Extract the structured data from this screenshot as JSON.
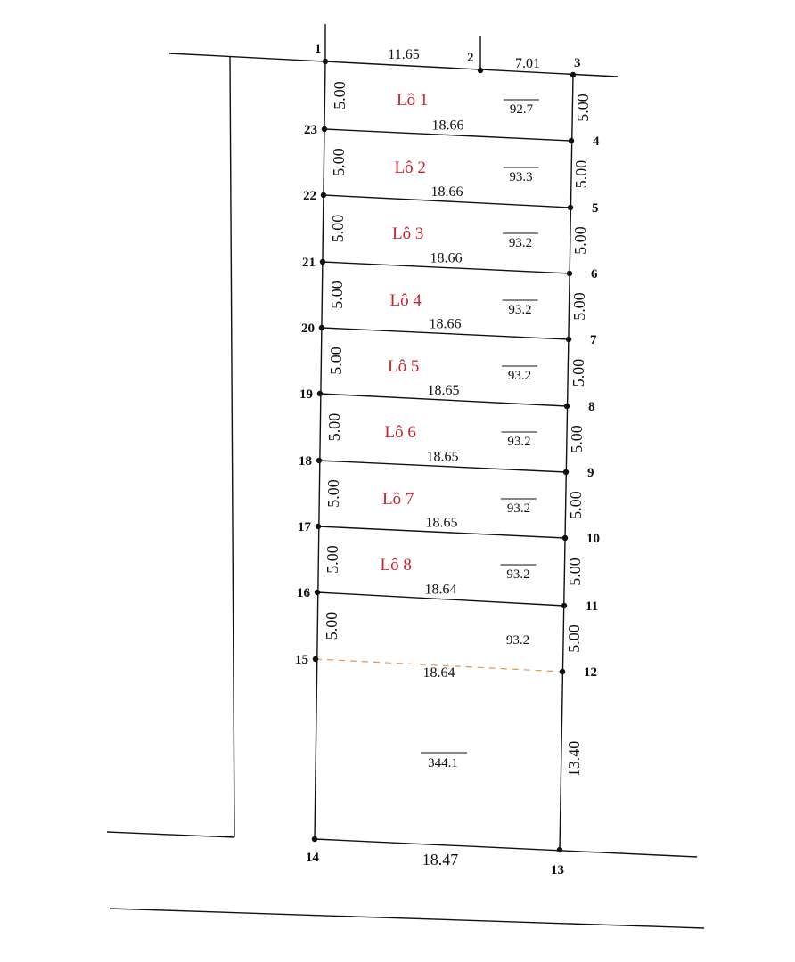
{
  "colors": {
    "lot_label": "#d0202a",
    "dashed_line": "#e8954a",
    "line": "#111111"
  },
  "top_edges": [
    "11.65",
    "7.01"
  ],
  "lots": [
    {
      "name": "Lô 1",
      "area": "92.7",
      "left": "5.00",
      "right": "5.00",
      "bottom_width": "18.66"
    },
    {
      "name": "Lô 2",
      "area": "93.3",
      "left": "5.00",
      "right": "5.00",
      "bottom_width": "18.66"
    },
    {
      "name": "Lô 3",
      "area": "93.2",
      "left": "5.00",
      "right": "5.00",
      "bottom_width": "18.66"
    },
    {
      "name": "Lô 4",
      "area": "93.2",
      "left": "5.00",
      "right": "5.00",
      "bottom_width": "18.66"
    },
    {
      "name": "Lô 5",
      "area": "93.2",
      "left": "5.00",
      "right": "5.00",
      "bottom_width": "18.65"
    },
    {
      "name": "Lô 6",
      "area": "93.2",
      "left": "5.00",
      "right": "5.00",
      "bottom_width": "18.65"
    },
    {
      "name": "Lô 7",
      "area": "93.2",
      "left": "5.00",
      "right": "5.00",
      "bottom_width": "18.65"
    },
    {
      "name": "Lô 8",
      "area": "93.2",
      "left": "5.00",
      "right": "5.00",
      "bottom_width": "18.64"
    },
    {
      "name": "",
      "area": "93.2",
      "left": "5.00",
      "right": "5.00",
      "bottom_width": "18.64",
      "dashed_bottom": true
    }
  ],
  "remainder": {
    "area": "344.1",
    "right": "13.40",
    "bottom_width": "18.47"
  },
  "left_points": [
    "1",
    "23",
    "22",
    "21",
    "20",
    "19",
    "18",
    "17",
    "16",
    "15",
    "14"
  ],
  "right_points": [
    "3",
    "4",
    "5",
    "6",
    "7",
    "8",
    "9",
    "10",
    "11",
    "12",
    "13"
  ],
  "top_mid_point": "2"
}
